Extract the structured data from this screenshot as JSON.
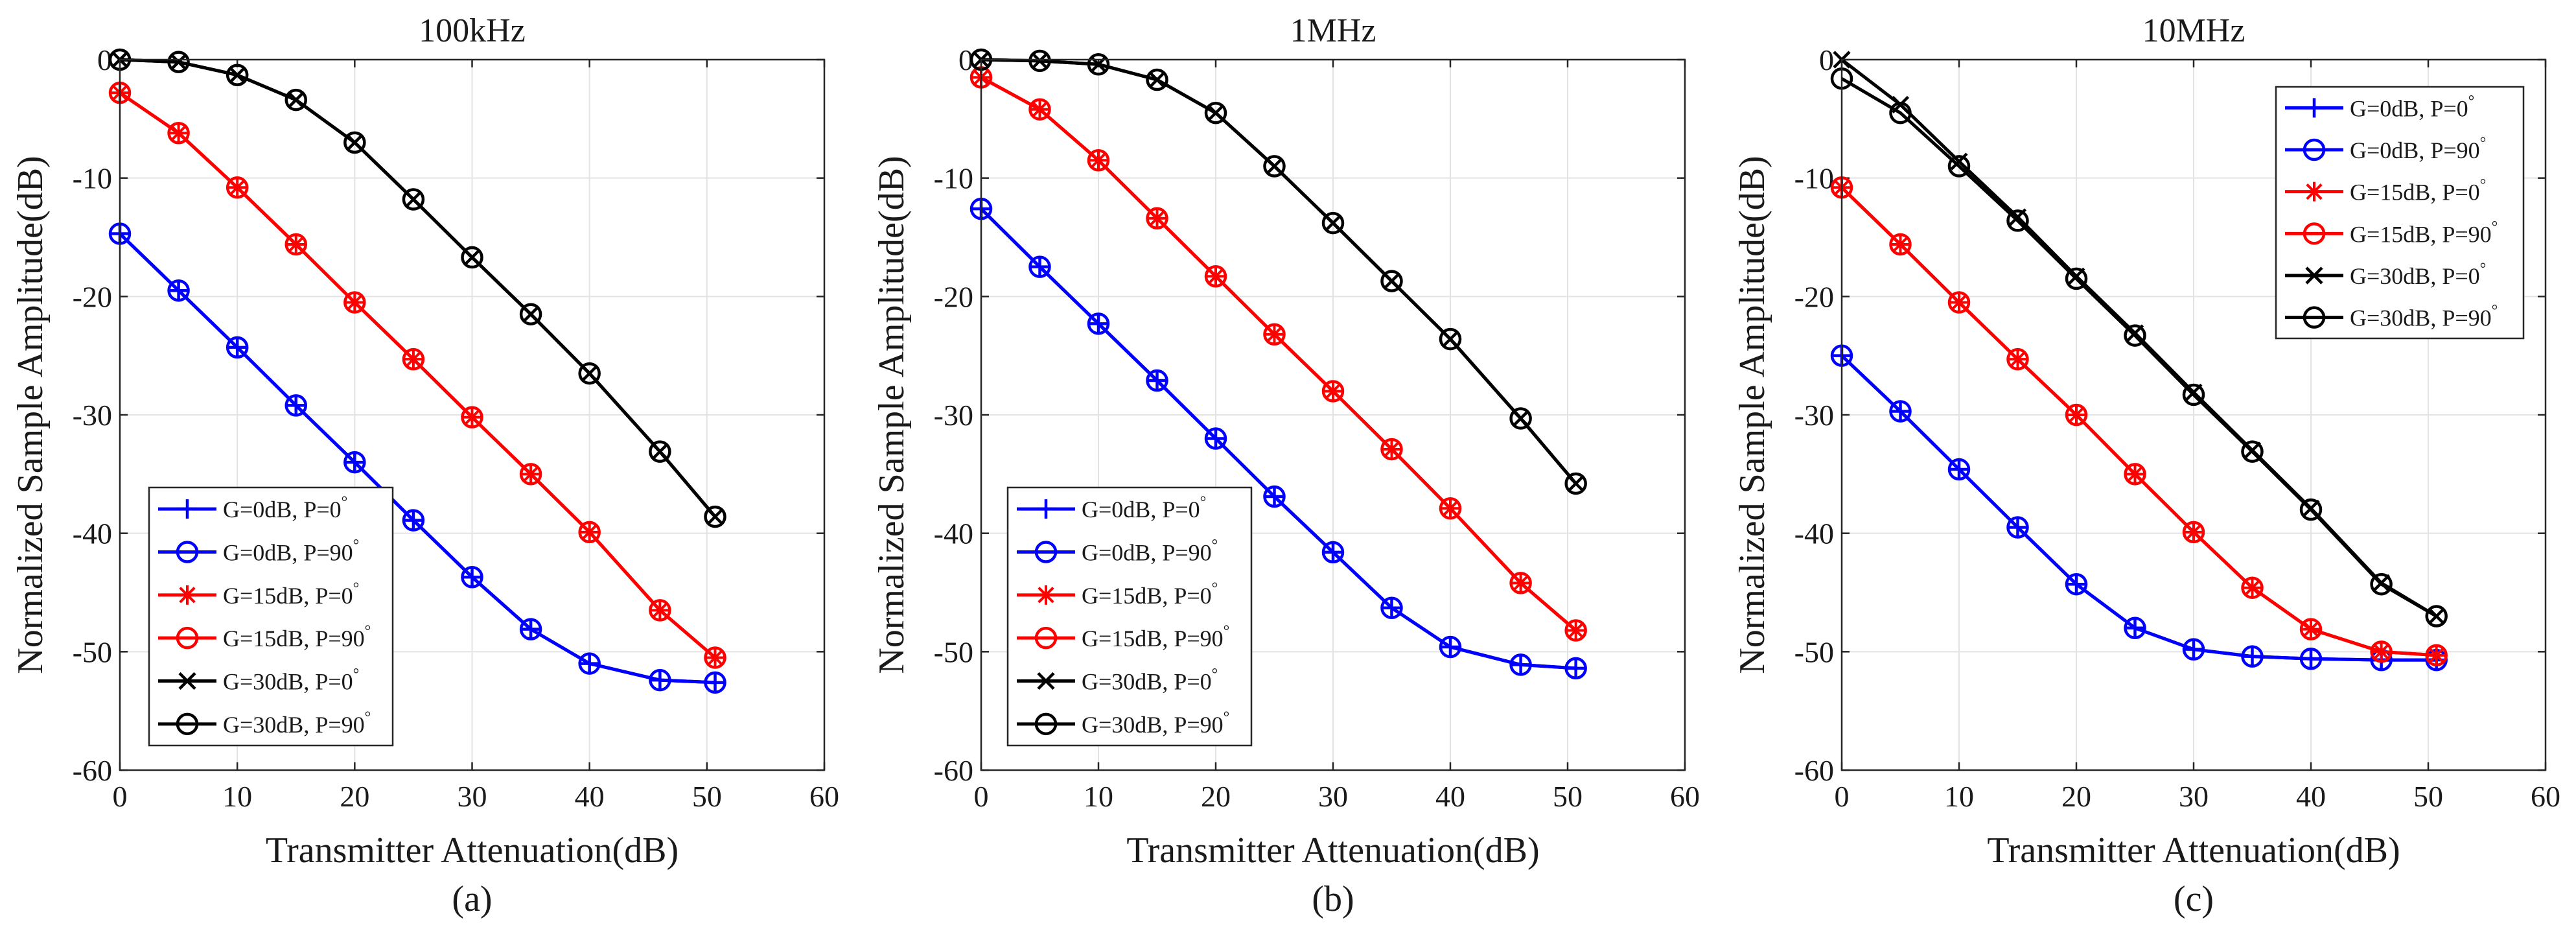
{
  "chart_data": [
    {
      "type": "line",
      "panel_label": "(a)",
      "title": "100kHz",
      "xlabel": "Transmitter Attenuation(dB)",
      "ylabel": "Normalized Sample Amplitude(dB)",
      "xlim": [
        0,
        60
      ],
      "ylim": [
        -60,
        0
      ],
      "xticks": [
        0,
        10,
        20,
        30,
        40,
        50,
        60
      ],
      "yticks": [
        -60,
        -50,
        -40,
        -30,
        -20,
        -10,
        0
      ],
      "grid": true,
      "legend_position": "bottom-left",
      "x": [
        0,
        5,
        10,
        15,
        20,
        25,
        30,
        35,
        40,
        46,
        50.7
      ],
      "series": [
        {
          "name": "G=0dB, P=0",
          "color": "#0000ff",
          "marker": "plus",
          "values": [
            -14.7,
            -19.5,
            -24.3,
            -29.2,
            -34.0,
            -38.9,
            -43.7,
            -48.1,
            -51.0,
            -52.4,
            -52.6
          ]
        },
        {
          "name": "G=0dB, P=90",
          "color": "#0000ff",
          "marker": "circle",
          "values": [
            -14.7,
            -19.5,
            -24.3,
            -29.2,
            -34.0,
            -38.9,
            -43.7,
            -48.1,
            -51.0,
            -52.4,
            -52.6
          ]
        },
        {
          "name": "G=15dB, P=0",
          "color": "#ff0000",
          "marker": "asterisk",
          "values": [
            -2.8,
            -6.2,
            -10.8,
            -15.6,
            -20.5,
            -25.3,
            -30.2,
            -35.0,
            -39.9,
            -46.5,
            -50.5
          ]
        },
        {
          "name": "G=15dB, P=90",
          "color": "#ff0000",
          "marker": "circle",
          "values": [
            -2.8,
            -6.2,
            -10.8,
            -15.6,
            -20.5,
            -25.3,
            -30.2,
            -35.0,
            -39.9,
            -46.5,
            -50.5
          ]
        },
        {
          "name": "G=30dB, P=0",
          "color": "#000000",
          "marker": "x",
          "values": [
            0,
            -0.2,
            -1.3,
            -3.4,
            -7.0,
            -11.8,
            -16.7,
            -21.5,
            -26.5,
            -33.1,
            -38.6
          ]
        },
        {
          "name": "G=30dB, P=90",
          "color": "#000000",
          "marker": "circle",
          "values": [
            0,
            -0.2,
            -1.3,
            -3.4,
            -7.0,
            -11.8,
            -16.7,
            -21.5,
            -26.5,
            -33.1,
            -38.6
          ]
        }
      ]
    },
    {
      "type": "line",
      "panel_label": "(b)",
      "title": "1MHz",
      "xlabel": "Transmitter Attenuation(dB)",
      "ylabel": "Normalized Sample Amplitude(dB)",
      "xlim": [
        0,
        60
      ],
      "ylim": [
        -60,
        0
      ],
      "xticks": [
        0,
        10,
        20,
        30,
        40,
        50,
        60
      ],
      "yticks": [
        -60,
        -50,
        -40,
        -30,
        -20,
        -10,
        0
      ],
      "grid": true,
      "legend_position": "bottom-left",
      "x": [
        0,
        5,
        10,
        15,
        20,
        25,
        30,
        35,
        40,
        46,
        50.7
      ],
      "series": [
        {
          "name": "G=0dB, P=0",
          "color": "#0000ff",
          "marker": "plus",
          "values": [
            -12.6,
            -17.5,
            -22.3,
            -27.1,
            -32.0,
            -36.9,
            -41.6,
            -46.3,
            -49.6,
            -51.1,
            -51.4
          ]
        },
        {
          "name": "G=0dB, P=90",
          "color": "#0000ff",
          "marker": "circle",
          "values": [
            -12.6,
            -17.5,
            -22.3,
            -27.1,
            -32.0,
            -36.9,
            -41.6,
            -46.3,
            -49.6,
            -51.1,
            -51.4
          ]
        },
        {
          "name": "G=15dB, P=0",
          "color": "#ff0000",
          "marker": "asterisk",
          "values": [
            -1.5,
            -4.2,
            -8.5,
            -13.4,
            -18.3,
            -23.2,
            -28.0,
            -32.9,
            -37.9,
            -44.2,
            -48.2
          ]
        },
        {
          "name": "G=15dB, P=90",
          "color": "#ff0000",
          "marker": "circle",
          "values": [
            -1.5,
            -4.2,
            -8.5,
            -13.4,
            -18.3,
            -23.2,
            -28.0,
            -32.9,
            -37.9,
            -44.2,
            -48.2
          ]
        },
        {
          "name": "G=30dB, P=0",
          "color": "#000000",
          "marker": "x",
          "values": [
            0,
            -0.1,
            -0.4,
            -1.7,
            -4.5,
            -9.0,
            -13.8,
            -18.7,
            -23.6,
            -30.3,
            -35.8
          ]
        },
        {
          "name": "G=30dB, P=90",
          "color": "#000000",
          "marker": "circle",
          "values": [
            0,
            -0.1,
            -0.4,
            -1.7,
            -4.5,
            -9.0,
            -13.8,
            -18.7,
            -23.6,
            -30.3,
            -35.8
          ]
        }
      ]
    },
    {
      "type": "line",
      "panel_label": "(c)",
      "title": "10MHz",
      "xlabel": "Transmitter Attenuation(dB)",
      "ylabel": "Normalized Sample Amplitude(dB)",
      "xlim": [
        0,
        60
      ],
      "ylim": [
        -60,
        0
      ],
      "xticks": [
        0,
        10,
        20,
        30,
        40,
        50,
        60
      ],
      "yticks": [
        -60,
        -50,
        -40,
        -30,
        -20,
        -10,
        0
      ],
      "grid": true,
      "legend_position": "top-right",
      "x": [
        0,
        5,
        10,
        15,
        20,
        25,
        30,
        35,
        40,
        46,
        50.7
      ],
      "series": [
        {
          "name": "G=0dB, P=0",
          "color": "#0000ff",
          "marker": "plus",
          "values": [
            -25.0,
            -29.7,
            -34.6,
            -39.5,
            -44.3,
            -48.0,
            -49.8,
            -50.4,
            -50.6,
            -50.7,
            -50.7
          ]
        },
        {
          "name": "G=0dB, P=90",
          "color": "#0000ff",
          "marker": "circle",
          "values": [
            -25.0,
            -29.7,
            -34.6,
            -39.5,
            -44.3,
            -48.0,
            -49.8,
            -50.4,
            -50.6,
            -50.7,
            -50.7
          ]
        },
        {
          "name": "G=15dB, P=0",
          "color": "#ff0000",
          "marker": "asterisk",
          "values": [
            -10.8,
            -15.6,
            -20.5,
            -25.3,
            -30.0,
            -35.0,
            -39.9,
            -44.6,
            -48.1,
            -50.0,
            -50.3
          ]
        },
        {
          "name": "G=15dB, P=90",
          "color": "#ff0000",
          "marker": "circle",
          "values": [
            -10.8,
            -15.6,
            -20.5,
            -25.3,
            -30.0,
            -35.0,
            -39.9,
            -44.6,
            -48.1,
            -50.0,
            -50.3
          ]
        },
        {
          "name": "G=30dB, P=0",
          "color": "#000000",
          "marker": "x",
          "values": [
            0,
            -3.8,
            -8.6,
            -13.3,
            -18.3,
            -23.1,
            -28.1,
            -33.0,
            -37.9,
            -44.2,
            -47.0
          ]
        },
        {
          "name": "G=30dB, P=90",
          "color": "#000000",
          "marker": "circle",
          "values": [
            -1.6,
            -4.5,
            -9.0,
            -13.6,
            -18.5,
            -23.3,
            -28.3,
            -33.1,
            -38.0,
            -44.3,
            -47.0
          ]
        }
      ]
    }
  ]
}
